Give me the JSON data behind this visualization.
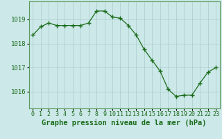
{
  "x": [
    0,
    1,
    2,
    3,
    4,
    5,
    6,
    7,
    8,
    9,
    10,
    11,
    12,
    13,
    14,
    15,
    16,
    17,
    18,
    19,
    20,
    21,
    22,
    23
  ],
  "y": [
    1018.35,
    1018.7,
    1018.85,
    1018.75,
    1018.75,
    1018.75,
    1018.75,
    1018.85,
    1019.35,
    1019.35,
    1019.1,
    1019.05,
    1018.75,
    1018.35,
    1017.75,
    1017.3,
    1016.85,
    1016.1,
    1015.8,
    1015.85,
    1015.85,
    1016.35,
    1016.8,
    1017.0
  ],
  "line_color": "#1a6b1a",
  "marker": "+",
  "marker_size": 4,
  "bg_color": "#cce8e8",
  "grid_color": "#aacccc",
  "ylabel_ticks": [
    1016,
    1017,
    1018,
    1019
  ],
  "ylim": [
    1015.3,
    1019.75
  ],
  "xlim": [
    -0.5,
    23.5
  ],
  "xlabel": "Graphe pression niveau de la mer (hPa)",
  "xlabel_fontsize": 7.5,
  "tick_fontsize": 6.5,
  "line_color_dark": "#1a5c1a",
  "spine_color": "#5a9a5a"
}
